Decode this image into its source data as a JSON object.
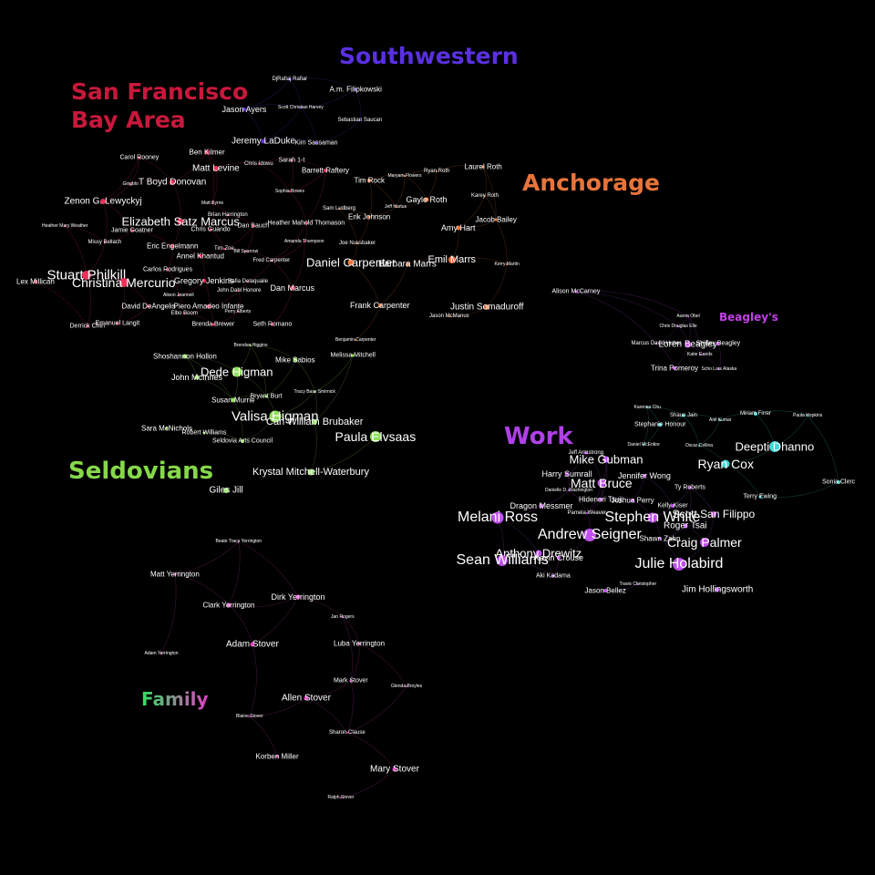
{
  "colors": {
    "sf": "#f0305a",
    "southwestern": "#6a35e0",
    "anchorage": "#e8763a",
    "seldovians": "#8fe05a",
    "work": "#c050f0",
    "beagleys": "#c040e8",
    "family": "#e040c0",
    "work_aux": "#40d8d8"
  },
  "clusters": [
    {
      "key": "sf",
      "name": "San Francisco",
      "name2": "Bay Area",
      "color": "#c8183c"
    },
    {
      "key": "southwestern",
      "name": "Southwestern",
      "color": "#5a30e0"
    },
    {
      "key": "anchorage",
      "name": "Anchorage",
      "color": "#e8743a"
    },
    {
      "key": "beagleys",
      "name": "Beagley's",
      "color": "#c040e8"
    },
    {
      "key": "work",
      "name": "Work",
      "color": "#b040e8"
    },
    {
      "key": "seldovians",
      "name": "Seldovians",
      "color": "#86d84a"
    },
    {
      "key": "family",
      "name": "Family",
      "color": "#30e060",
      "color2": "#e040c0"
    }
  ],
  "nodes": [
    {
      "name": "DjRafiaj Rafiar",
      "group": "southwestern"
    },
    {
      "name": "A.m. Filipkowski",
      "group": "southwestern"
    },
    {
      "name": "Jason Ayers",
      "group": "southwestern"
    },
    {
      "name": "Scott Christian Harvey",
      "group": "southwestern"
    },
    {
      "name": "Sebastian Saucan",
      "group": "southwestern"
    },
    {
      "name": "Jeremy LaDuke",
      "group": "southwestern"
    },
    {
      "name": "Kim Sassaman",
      "group": "southwestern"
    },
    {
      "name": "Ben Kilmer",
      "group": "sf"
    },
    {
      "name": "Carol Rooney",
      "group": "sf"
    },
    {
      "name": "Matt Levine",
      "group": "sf"
    },
    {
      "name": "Chris Idowu",
      "group": "sf"
    },
    {
      "name": "Sarah 1-t",
      "group": "sf"
    },
    {
      "name": "Barrett Raftery",
      "group": "sf"
    },
    {
      "name": "Gingblo",
      "group": "sf"
    },
    {
      "name": "T Boyd Donovan",
      "group": "sf"
    },
    {
      "name": "Sophia Bowes",
      "group": "sf"
    },
    {
      "name": "Zenon G. Lewyckyj",
      "group": "sf"
    },
    {
      "name": "Matt Byrne",
      "group": "sf"
    },
    {
      "name": "Brian Harrington",
      "group": "sf"
    },
    {
      "name": "Elizabeth Satz Marcus",
      "group": "sf"
    },
    {
      "name": "Dan Bauch",
      "group": "sf"
    },
    {
      "name": "Heather Mahold Thomason",
      "group": "sf"
    },
    {
      "name": "Heather Mary Weather",
      "group": "sf"
    },
    {
      "name": "Jamie Goatner",
      "group": "sf"
    },
    {
      "name": "Chris Guando",
      "group": "sf"
    },
    {
      "name": "Amanda Thompson",
      "group": "sf"
    },
    {
      "name": "Missy Bellach",
      "group": "sf"
    },
    {
      "name": "Eric Engelmann",
      "group": "sf"
    },
    {
      "name": "Tim Zoe",
      "group": "sf"
    },
    {
      "name": "Bill Sparrow",
      "group": "sf"
    },
    {
      "name": "Annel Khantud",
      "group": "sf"
    },
    {
      "name": "Fred Carpenter",
      "group": "sf"
    },
    {
      "name": "Carlos Rodrigues",
      "group": "sf"
    },
    {
      "name": "Stuart Philkill",
      "group": "sf"
    },
    {
      "name": "Lex Millican",
      "group": "sf"
    },
    {
      "name": "Christina Mercurio",
      "group": "sf"
    },
    {
      "name": "Gregory Jenkins",
      "group": "sf"
    },
    {
      "name": "Rafia Delaquaile",
      "group": "sf"
    },
    {
      "name": "John Dahl Honore",
      "group": "sf"
    },
    {
      "name": "Dan Marcus",
      "group": "sf"
    },
    {
      "name": "Alison Jeannell",
      "group": "sf"
    },
    {
      "name": "David DeAngelis",
      "group": "sf"
    },
    {
      "name": "Piero Amadeo Infante",
      "group": "sf"
    },
    {
      "name": "Perry Alberts",
      "group": "sf"
    },
    {
      "name": "Elbo Boom",
      "group": "sf"
    },
    {
      "name": "Derrick Chin",
      "group": "sf"
    },
    {
      "name": "Emanuel Langit",
      "group": "sf"
    },
    {
      "name": "Brenda Brewer",
      "group": "sf"
    },
    {
      "name": "Seth Romano",
      "group": "sf"
    },
    {
      "name": "Tim Rock",
      "group": "anchorage"
    },
    {
      "name": "Maryam Flowers",
      "group": "anchorage"
    },
    {
      "name": "Ryan Roth",
      "group": "anchorage"
    },
    {
      "name": "Laurel Roth",
      "group": "anchorage"
    },
    {
      "name": "Gayle Roth",
      "group": "anchorage"
    },
    {
      "name": "Jeff Hartus",
      "group": "anchorage"
    },
    {
      "name": "Karey Roth",
      "group": "anchorage"
    },
    {
      "name": "Sam Ludberg",
      "group": "anchorage"
    },
    {
      "name": "Erik Johnson",
      "group": "anchorage"
    },
    {
      "name": "Jacob Bailey",
      "group": "anchorage"
    },
    {
      "name": "Amy Hart",
      "group": "anchorage"
    },
    {
      "name": "Joe Nussbaker",
      "group": "anchorage"
    },
    {
      "name": "Daniel Carpenter",
      "group": "anchorage"
    },
    {
      "name": "Barbara Marrs",
      "group": "anchorage"
    },
    {
      "name": "Emil Marrs",
      "group": "anchorage"
    },
    {
      "name": "Kerry Martin",
      "group": "anchorage"
    },
    {
      "name": "Frank Carpenter",
      "group": "anchorage"
    },
    {
      "name": "Justin Somaduroff",
      "group": "anchorage"
    },
    {
      "name": "Jason McManus",
      "group": "anchorage"
    },
    {
      "name": "Benjamin Carpenter",
      "group": "anchorage"
    },
    {
      "name": "Alison McCarney",
      "group": "beagleys"
    },
    {
      "name": "Aaron Obel",
      "group": "beagleys"
    },
    {
      "name": "Chris Douglas Elle",
      "group": "beagleys"
    },
    {
      "name": "Marcus David Huber",
      "group": "beagleys"
    },
    {
      "name": "Loren Beagley",
      "group": "beagleys"
    },
    {
      "name": "Shirley Beagley",
      "group": "beagleys"
    },
    {
      "name": "Katie Gaeds",
      "group": "beagleys"
    },
    {
      "name": "Trina Pomeroy",
      "group": "beagleys"
    },
    {
      "name": "Scho Lars Alaska",
      "group": "beagleys"
    },
    {
      "name": "Brendan Higgins",
      "group": "seldovians"
    },
    {
      "name": "Shoshannon Hollon",
      "group": "seldovians"
    },
    {
      "name": "Mike Sabios",
      "group": "seldovians"
    },
    {
      "name": "Melissa Mitchell",
      "group": "seldovians"
    },
    {
      "name": "Dede Higman",
      "group": "seldovians"
    },
    {
      "name": "John McInnes",
      "group": "seldovians"
    },
    {
      "name": "Tracy Bass Smirnick",
      "group": "seldovians"
    },
    {
      "name": "Susan Murrie",
      "group": "seldovians"
    },
    {
      "name": "Bryant Burt",
      "group": "seldovians"
    },
    {
      "name": "Valisa Higman",
      "group": "seldovians"
    },
    {
      "name": "Carl William Brubaker",
      "group": "seldovians"
    },
    {
      "name": "Sara McNichols",
      "group": "seldovians"
    },
    {
      "name": "Robert Williams",
      "group": "seldovians"
    },
    {
      "name": "Paula Elvsaas",
      "group": "seldovians"
    },
    {
      "name": "Seldovia Arts Council",
      "group": "seldovians"
    },
    {
      "name": "Krystal Mitchell-Waterbury",
      "group": "seldovians"
    },
    {
      "name": "Giles Jill",
      "group": "seldovians"
    },
    {
      "name": "Karenna Chu",
      "group": "work_aux"
    },
    {
      "name": "Shaun Jain",
      "group": "work_aux"
    },
    {
      "name": "Anil Kumar",
      "group": "work_aux"
    },
    {
      "name": "Miriam Firrer",
      "group": "work_aux"
    },
    {
      "name": "Paula Hopkins",
      "group": "work_aux"
    },
    {
      "name": "Stephanie Honour",
      "group": "work_aux"
    },
    {
      "name": "Daniel McEntire",
      "group": "work_aux"
    },
    {
      "name": "Oscar Cellina",
      "group": "work_aux"
    },
    {
      "name": "Deepti Dhanno",
      "group": "work_aux"
    },
    {
      "name": "Ryan Cox",
      "group": "work_aux"
    },
    {
      "name": "Sonia Clerc",
      "group": "work_aux"
    },
    {
      "name": "Terry Ewing",
      "group": "work_aux"
    },
    {
      "name": "Jeff Armstrong",
      "group": "work"
    },
    {
      "name": "Mike Gubman",
      "group": "work"
    },
    {
      "name": "Harry Sumrall",
      "group": "work"
    },
    {
      "name": "Jennifer Wong",
      "group": "work"
    },
    {
      "name": "Matt Bruce",
      "group": "work"
    },
    {
      "name": "Ty Roberts",
      "group": "work"
    },
    {
      "name": "Danielle D. Washington",
      "group": "work"
    },
    {
      "name": "Hidenori Tsuji",
      "group": "work"
    },
    {
      "name": "Joshua Perry",
      "group": "work"
    },
    {
      "name": "Dragon Messmer",
      "group": "work"
    },
    {
      "name": "Kelly Kiser",
      "group": "work"
    },
    {
      "name": "Melani Ross",
      "group": "work"
    },
    {
      "name": "Stephen White",
      "group": "work"
    },
    {
      "name": "Scott San Filippo",
      "group": "work"
    },
    {
      "name": "Pamela Weaver",
      "group": "work"
    },
    {
      "name": "Roger Tsai",
      "group": "work"
    },
    {
      "name": "Andrew Seigner",
      "group": "work"
    },
    {
      "name": "Shawn Zahn",
      "group": "work"
    },
    {
      "name": "Craig Palmer",
      "group": "work"
    },
    {
      "name": "Anthony Drewitz",
      "group": "work"
    },
    {
      "name": "Kevin Crouse",
      "group": "work"
    },
    {
      "name": "Sean Williams",
      "group": "work"
    },
    {
      "name": "Julie Holabird",
      "group": "work"
    },
    {
      "name": "Aki Kadama",
      "group": "work"
    },
    {
      "name": "Travis Christopher",
      "group": "work"
    },
    {
      "name": "Jason Bellez",
      "group": "work"
    },
    {
      "name": "Jim Hollingsworth",
      "group": "work"
    },
    {
      "name": "Beate Tracy Yerrington",
      "group": "family"
    },
    {
      "name": "Matt Yerrington",
      "group": "family"
    },
    {
      "name": "Dirk Yerrington",
      "group": "family"
    },
    {
      "name": "Clark Yerrington",
      "group": "family"
    },
    {
      "name": "Jan Rogers",
      "group": "family"
    },
    {
      "name": "Adam Stover",
      "group": "family"
    },
    {
      "name": "Luba Yerrington",
      "group": "family"
    },
    {
      "name": "Adam Yerrington",
      "group": "family"
    },
    {
      "name": "Mark Stover",
      "group": "family"
    },
    {
      "name": "Glenda Broyles",
      "group": "family"
    },
    {
      "name": "Allen Stover",
      "group": "family"
    },
    {
      "name": "Blaine Stover",
      "group": "family"
    },
    {
      "name": "Sharon Clause",
      "group": "family"
    },
    {
      "name": "Korben Miller",
      "group": "family"
    },
    {
      "name": "Mary Stover",
      "group": "family"
    },
    {
      "name": "Ralph Stover",
      "group": "family"
    }
  ]
}
